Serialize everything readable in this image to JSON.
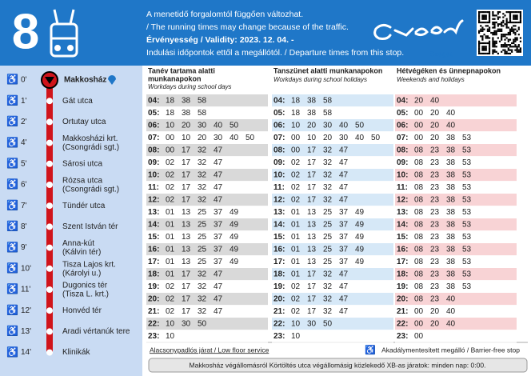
{
  "header": {
    "line": "8",
    "notes": [
      "A menetidő forgalomtól függően változhat.",
      "/ The running times may change because of the traffic.",
      "Érvényesség / Validity: 2023. 12. 04. -",
      "Indulási időpontok ettől a megállótól. / Departure times from this stop."
    ],
    "logo": "Szeged"
  },
  "stops": [
    {
      "time": "0'",
      "name": "Makkosház"
    },
    {
      "time": "1'",
      "name": "Gát utca"
    },
    {
      "time": "2'",
      "name": "Ortutay utca"
    },
    {
      "time": "4'",
      "name": "Makkosházi krt.",
      "sub": "(Csongrádi sgt.)"
    },
    {
      "time": "5'",
      "name": "Sárosi utca"
    },
    {
      "time": "6'",
      "name": "Rózsa utca",
      "sub": "(Csongrádi sgt.)"
    },
    {
      "time": "7'",
      "name": "Tündér utca"
    },
    {
      "time": "8'",
      "name": "Szent István tér"
    },
    {
      "time": "9'",
      "name": "Anna-kút",
      "sub": "(Kálvin tér)"
    },
    {
      "time": "10'",
      "name": "Tisza Lajos krt.",
      "sub": "(Károlyi u.)"
    },
    {
      "time": "11'",
      "name": "Dugonics tér",
      "sub": "(Tisza L. krt.)"
    },
    {
      "time": "12'",
      "name": "Honvéd tér"
    },
    {
      "time": "13'",
      "name": "Aradi vértanúk tere"
    },
    {
      "time": "14'",
      "name": "Klinikák"
    }
  ],
  "columns": [
    {
      "title": "Tanév tartama alatti",
      "title2": "munkanapokon",
      "subtitle": "Workdays during school days",
      "rows": [
        {
          "hour": "04:",
          "minutes": [
            "18",
            "38",
            "58"
          ]
        },
        {
          "hour": "05:",
          "minutes": [
            "18",
            "38",
            "58"
          ]
        },
        {
          "hour": "06:",
          "minutes": [
            "10",
            "20",
            "30",
            "40",
            "50"
          ]
        },
        {
          "hour": "07:",
          "minutes": [
            "00",
            "10",
            "20",
            "30",
            "40",
            "50"
          ]
        },
        {
          "hour": "08:",
          "minutes": [
            "00",
            "17",
            "32",
            "47"
          ]
        },
        {
          "hour": "09:",
          "minutes": [
            "02",
            "17",
            "32",
            "47"
          ]
        },
        {
          "hour": "10:",
          "minutes": [
            "02",
            "17",
            "32",
            "47"
          ]
        },
        {
          "hour": "11:",
          "minutes": [
            "02",
            "17",
            "32",
            "47"
          ]
        },
        {
          "hour": "12:",
          "minutes": [
            "02",
            "17",
            "32",
            "47"
          ]
        },
        {
          "hour": "13:",
          "minutes": [
            "01",
            "13",
            "25",
            "37",
            "49"
          ]
        },
        {
          "hour": "14:",
          "minutes": [
            "01",
            "13",
            "25",
            "37",
            "49"
          ]
        },
        {
          "hour": "15:",
          "minutes": [
            "01",
            "13",
            "25",
            "37",
            "49"
          ]
        },
        {
          "hour": "16:",
          "minutes": [
            "01",
            "13",
            "25",
            "37",
            "49"
          ]
        },
        {
          "hour": "17:",
          "minutes": [
            "01",
            "13",
            "25",
            "37",
            "49"
          ]
        },
        {
          "hour": "18:",
          "minutes": [
            "01",
            "17",
            "32",
            "47"
          ]
        },
        {
          "hour": "19:",
          "minutes": [
            "02",
            "17",
            "32",
            "47"
          ]
        },
        {
          "hour": "20:",
          "minutes": [
            "02",
            "17",
            "32",
            "47"
          ]
        },
        {
          "hour": "21:",
          "minutes": [
            "02",
            "17",
            "32",
            "47"
          ]
        },
        {
          "hour": "22:",
          "minutes": [
            "10",
            "30",
            "50"
          ]
        },
        {
          "hour": "23:",
          "minutes": [
            "10"
          ]
        }
      ]
    },
    {
      "title": "Tanszünet alatti munkanapokon",
      "subtitle": "Workdays during school holidays",
      "rows": [
        {
          "hour": "04:",
          "minutes": [
            "18",
            "38",
            "58"
          ]
        },
        {
          "hour": "05:",
          "minutes": [
            "18",
            "38",
            "58"
          ]
        },
        {
          "hour": "06:",
          "minutes": [
            "10",
            "20",
            "30",
            "40",
            "50"
          ]
        },
        {
          "hour": "07:",
          "minutes": [
            "00",
            "10",
            "20",
            "30",
            "40",
            "50"
          ]
        },
        {
          "hour": "08:",
          "minutes": [
            "00",
            "17",
            "32",
            "47"
          ]
        },
        {
          "hour": "09:",
          "minutes": [
            "02",
            "17",
            "32",
            "47"
          ]
        },
        {
          "hour": "10:",
          "minutes": [
            "02",
            "17",
            "32",
            "47"
          ]
        },
        {
          "hour": "11:",
          "minutes": [
            "02",
            "17",
            "32",
            "47"
          ]
        },
        {
          "hour": "12:",
          "minutes": [
            "02",
            "17",
            "32",
            "47"
          ]
        },
        {
          "hour": "13:",
          "minutes": [
            "01",
            "13",
            "25",
            "37",
            "49"
          ]
        },
        {
          "hour": "14:",
          "minutes": [
            "01",
            "13",
            "25",
            "37",
            "49"
          ]
        },
        {
          "hour": "15:",
          "minutes": [
            "01",
            "13",
            "25",
            "37",
            "49"
          ]
        },
        {
          "hour": "16:",
          "minutes": [
            "01",
            "13",
            "25",
            "37",
            "49"
          ]
        },
        {
          "hour": "17:",
          "minutes": [
            "01",
            "13",
            "25",
            "37",
            "49"
          ]
        },
        {
          "hour": "18:",
          "minutes": [
            "01",
            "17",
            "32",
            "47"
          ]
        },
        {
          "hour": "19:",
          "minutes": [
            "02",
            "17",
            "32",
            "47"
          ]
        },
        {
          "hour": "20:",
          "minutes": [
            "02",
            "17",
            "32",
            "47"
          ]
        },
        {
          "hour": "21:",
          "minutes": [
            "02",
            "17",
            "32",
            "47"
          ]
        },
        {
          "hour": "22:",
          "minutes": [
            "10",
            "30",
            "50"
          ]
        },
        {
          "hour": "23:",
          "minutes": [
            "10"
          ]
        }
      ]
    },
    {
      "title": "Hétvégéken és ünnepnapokon",
      "subtitle": "Weekends and holidays",
      "rows": [
        {
          "hour": "04:",
          "minutes": [
            "20",
            "40"
          ]
        },
        {
          "hour": "05:",
          "minutes": [
            "00",
            "20",
            "40"
          ]
        },
        {
          "hour": "06:",
          "minutes": [
            "00",
            "20",
            "40"
          ]
        },
        {
          "hour": "07:",
          "minutes": [
            "00",
            "20",
            "38",
            "53"
          ]
        },
        {
          "hour": "08:",
          "minutes": [
            "08",
            "23",
            "38",
            "53"
          ]
        },
        {
          "hour": "09:",
          "minutes": [
            "08",
            "23",
            "38",
            "53"
          ]
        },
        {
          "hour": "10:",
          "minutes": [
            "08",
            "23",
            "38",
            "53"
          ]
        },
        {
          "hour": "11:",
          "minutes": [
            "08",
            "23",
            "38",
            "53"
          ]
        },
        {
          "hour": "12:",
          "minutes": [
            "08",
            "23",
            "38",
            "53"
          ]
        },
        {
          "hour": "13:",
          "minutes": [
            "08",
            "23",
            "38",
            "53"
          ]
        },
        {
          "hour": "14:",
          "minutes": [
            "08",
            "23",
            "38",
            "53"
          ]
        },
        {
          "hour": "15:",
          "minutes": [
            "08",
            "23",
            "38",
            "53"
          ]
        },
        {
          "hour": "16:",
          "minutes": [
            "08",
            "23",
            "38",
            "53"
          ]
        },
        {
          "hour": "17:",
          "minutes": [
            "08",
            "23",
            "38",
            "53"
          ]
        },
        {
          "hour": "18:",
          "minutes": [
            "08",
            "23",
            "38",
            "53"
          ]
        },
        {
          "hour": "19:",
          "minutes": [
            "08",
            "23",
            "38",
            "53"
          ]
        },
        {
          "hour": "20:",
          "minutes": [
            "08",
            "23",
            "40"
          ]
        },
        {
          "hour": "21:",
          "minutes": [
            "00",
            "20",
            "40"
          ]
        },
        {
          "hour": "22:",
          "minutes": [
            "00",
            "20",
            "40"
          ]
        },
        {
          "hour": "23:",
          "minutes": [
            "00"
          ]
        }
      ]
    }
  ],
  "footer": {
    "low_floor": "Alacsonypadlós járat / Low floor service",
    "barrier_free": "Akadálymentesített megálló / Barrier-free stop",
    "note": "Makkosház végállomásról Körtöltés utca végállomásig közlekedő XB-as járatok: minden nap: 0:00."
  }
}
